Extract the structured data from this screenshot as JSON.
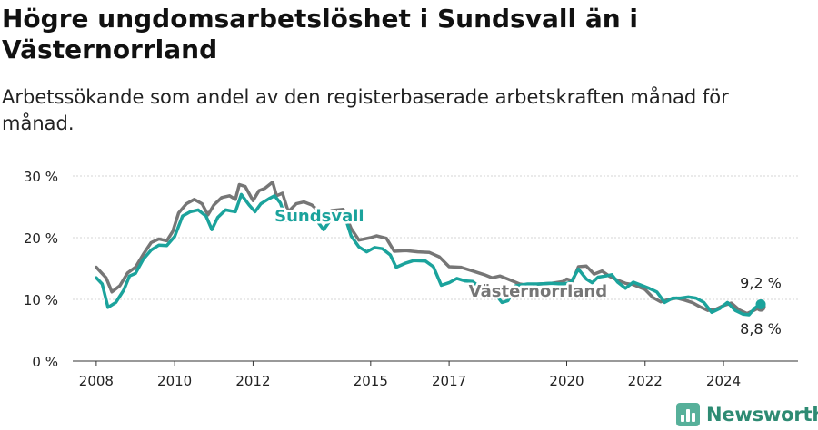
{
  "title": "Högre ungdomsarbetslöshet i Sundsvall än i Västernorrland",
  "subtitle": "Arbetssökande som andel av den registerbaserade arbetskraften månad för månad.",
  "brand": {
    "name": "Newsworthy",
    "icon": "newsworthy-logo-icon",
    "color": "#57b09a"
  },
  "chart_data": {
    "type": "line",
    "title": "Högre ungdomsarbetslöshet i Sundsvall än i Västernorrland",
    "xlabel": "",
    "ylabel": "",
    "xlim": [
      2007.4,
      2025.9
    ],
    "ylim": [
      0,
      30
    ],
    "y_ticks": [
      0,
      10,
      20,
      30
    ],
    "y_tick_labels": [
      "0 %",
      "10 %",
      "20 %",
      "30 %"
    ],
    "x_ticks": [
      2008,
      2010,
      2012,
      2015,
      2017,
      2020,
      2022,
      2024
    ],
    "x_tick_labels": [
      "2008",
      "2010",
      "2012",
      "2015",
      "2017",
      "2020",
      "2022",
      "2024"
    ],
    "grid": true,
    "series": [
      {
        "name": "Västernorrland",
        "color": "#767676",
        "points": [
          [
            2008.0,
            15.2
          ],
          [
            2008.25,
            13.5
          ],
          [
            2008.4,
            11.2
          ],
          [
            2008.6,
            12.2
          ],
          [
            2008.8,
            14.3
          ],
          [
            2009.0,
            15.2
          ],
          [
            2009.2,
            17.3
          ],
          [
            2009.4,
            19.2
          ],
          [
            2009.6,
            19.8
          ],
          [
            2009.8,
            19.5
          ],
          [
            2009.95,
            21.0
          ],
          [
            2010.1,
            24.0
          ],
          [
            2010.3,
            25.5
          ],
          [
            2010.5,
            26.2
          ],
          [
            2010.7,
            25.5
          ],
          [
            2010.85,
            23.7
          ],
          [
            2011.0,
            25.3
          ],
          [
            2011.2,
            26.5
          ],
          [
            2011.4,
            26.8
          ],
          [
            2011.55,
            26.2
          ],
          [
            2011.65,
            28.6
          ],
          [
            2011.8,
            28.3
          ],
          [
            2012.0,
            26.0
          ],
          [
            2012.15,
            27.6
          ],
          [
            2012.3,
            28.0
          ],
          [
            2012.5,
            29.0
          ],
          [
            2012.6,
            26.8
          ],
          [
            2012.75,
            27.2
          ],
          [
            2012.9,
            24.2
          ],
          [
            2013.1,
            25.5
          ],
          [
            2013.3,
            25.8
          ],
          [
            2013.5,
            25.3
          ],
          [
            2013.8,
            23.6
          ],
          [
            2014.0,
            24.4
          ],
          [
            2014.3,
            24.6
          ],
          [
            2014.5,
            21.5
          ],
          [
            2014.7,
            19.6
          ],
          [
            2015.0,
            20.0
          ],
          [
            2015.15,
            20.3
          ],
          [
            2015.4,
            19.9
          ],
          [
            2015.6,
            17.8
          ],
          [
            2015.9,
            17.9
          ],
          [
            2016.2,
            17.7
          ],
          [
            2016.5,
            17.6
          ],
          [
            2016.75,
            16.9
          ],
          [
            2017.0,
            15.3
          ],
          [
            2017.3,
            15.2
          ],
          [
            2017.6,
            14.6
          ],
          [
            2017.9,
            14.0
          ],
          [
            2018.1,
            13.5
          ],
          [
            2018.3,
            13.8
          ],
          [
            2018.5,
            13.3
          ],
          [
            2018.8,
            12.5
          ],
          [
            2019.0,
            12.3
          ],
          [
            2019.3,
            12.5
          ],
          [
            2019.6,
            12.6
          ],
          [
            2019.9,
            12.9
          ],
          [
            2020.0,
            13.3
          ],
          [
            2020.15,
            13.0
          ],
          [
            2020.3,
            15.3
          ],
          [
            2020.5,
            15.4
          ],
          [
            2020.7,
            14.1
          ],
          [
            2020.9,
            14.6
          ],
          [
            2021.1,
            13.7
          ],
          [
            2021.3,
            13.1
          ],
          [
            2021.5,
            12.6
          ],
          [
            2021.7,
            12.4
          ],
          [
            2022.0,
            11.6
          ],
          [
            2022.2,
            10.3
          ],
          [
            2022.4,
            9.6
          ],
          [
            2022.6,
            10.0
          ],
          [
            2022.8,
            10.2
          ],
          [
            2023.0,
            9.9
          ],
          [
            2023.2,
            9.5
          ],
          [
            2023.4,
            8.8
          ],
          [
            2023.6,
            8.2
          ],
          [
            2023.8,
            8.4
          ],
          [
            2024.0,
            9.0
          ],
          [
            2024.2,
            9.4
          ],
          [
            2024.4,
            8.3
          ],
          [
            2024.6,
            7.7
          ],
          [
            2024.8,
            8.3
          ],
          [
            2024.95,
            8.8
          ]
        ],
        "end_value": 8.8,
        "end_label": "8,8 %"
      },
      {
        "name": "Sundsvall",
        "color": "#1ba39c",
        "points": [
          [
            2008.0,
            13.5
          ],
          [
            2008.15,
            12.5
          ],
          [
            2008.3,
            8.7
          ],
          [
            2008.5,
            9.5
          ],
          [
            2008.7,
            11.5
          ],
          [
            2008.85,
            13.8
          ],
          [
            2009.0,
            14.2
          ],
          [
            2009.2,
            16.5
          ],
          [
            2009.4,
            18.0
          ],
          [
            2009.6,
            18.8
          ],
          [
            2009.8,
            18.7
          ],
          [
            2010.0,
            20.2
          ],
          [
            2010.2,
            23.5
          ],
          [
            2010.4,
            24.2
          ],
          [
            2010.6,
            24.5
          ],
          [
            2010.8,
            23.5
          ],
          [
            2010.95,
            21.3
          ],
          [
            2011.1,
            23.3
          ],
          [
            2011.3,
            24.5
          ],
          [
            2011.55,
            24.2
          ],
          [
            2011.7,
            27.0
          ],
          [
            2011.9,
            25.3
          ],
          [
            2012.05,
            24.2
          ],
          [
            2012.2,
            25.5
          ],
          [
            2012.4,
            26.3
          ],
          [
            2012.55,
            26.8
          ],
          [
            2012.7,
            25.6
          ],
          [
            2012.85,
            22.8
          ],
          [
            2013.0,
            23.5
          ],
          [
            2013.3,
            23.8
          ],
          [
            2013.6,
            23.0
          ],
          [
            2013.8,
            21.3
          ],
          [
            2014.1,
            24.0
          ],
          [
            2014.3,
            24.3
          ],
          [
            2014.5,
            20.3
          ],
          [
            2014.7,
            18.5
          ],
          [
            2014.9,
            17.7
          ],
          [
            2015.1,
            18.4
          ],
          [
            2015.3,
            18.2
          ],
          [
            2015.5,
            17.2
          ],
          [
            2015.65,
            15.2
          ],
          [
            2015.9,
            15.9
          ],
          [
            2016.1,
            16.3
          ],
          [
            2016.4,
            16.2
          ],
          [
            2016.6,
            15.3
          ],
          [
            2016.8,
            12.3
          ],
          [
            2017.0,
            12.7
          ],
          [
            2017.2,
            13.4
          ],
          [
            2017.4,
            13.0
          ],
          [
            2017.6,
            12.9
          ],
          [
            2017.8,
            11.9
          ],
          [
            2018.0,
            10.6
          ],
          [
            2018.2,
            10.7
          ],
          [
            2018.35,
            9.5
          ],
          [
            2018.5,
            9.8
          ],
          [
            2018.7,
            12.2
          ],
          [
            2019.0,
            12.5
          ],
          [
            2019.3,
            12.5
          ],
          [
            2019.6,
            12.6
          ],
          [
            2019.9,
            12.5
          ],
          [
            2020.1,
            12.7
          ],
          [
            2020.3,
            14.9
          ],
          [
            2020.5,
            13.3
          ],
          [
            2020.65,
            12.7
          ],
          [
            2020.8,
            13.6
          ],
          [
            2021.0,
            13.8
          ],
          [
            2021.15,
            14.0
          ],
          [
            2021.3,
            12.8
          ],
          [
            2021.5,
            11.8
          ],
          [
            2021.7,
            12.8
          ],
          [
            2021.9,
            12.3
          ],
          [
            2022.1,
            11.8
          ],
          [
            2022.3,
            11.2
          ],
          [
            2022.5,
            9.5
          ],
          [
            2022.7,
            10.2
          ],
          [
            2022.9,
            10.2
          ],
          [
            2023.1,
            10.4
          ],
          [
            2023.3,
            10.2
          ],
          [
            2023.5,
            9.5
          ],
          [
            2023.7,
            7.9
          ],
          [
            2023.9,
            8.5
          ],
          [
            2024.1,
            9.5
          ],
          [
            2024.3,
            8.2
          ],
          [
            2024.5,
            7.6
          ],
          [
            2024.65,
            7.5
          ],
          [
            2024.8,
            8.6
          ],
          [
            2024.95,
            9.2
          ]
        ],
        "end_value": 9.2,
        "end_label": "9,2 %"
      }
    ],
    "annotations": [
      {
        "text": "Sundsvall",
        "series": "Sundsvall",
        "x": 2012.55,
        "y": 23.5
      },
      {
        "text": "Västernorrland",
        "series": "Västernorrland",
        "x": 2017.5,
        "y": 11.3
      }
    ]
  }
}
